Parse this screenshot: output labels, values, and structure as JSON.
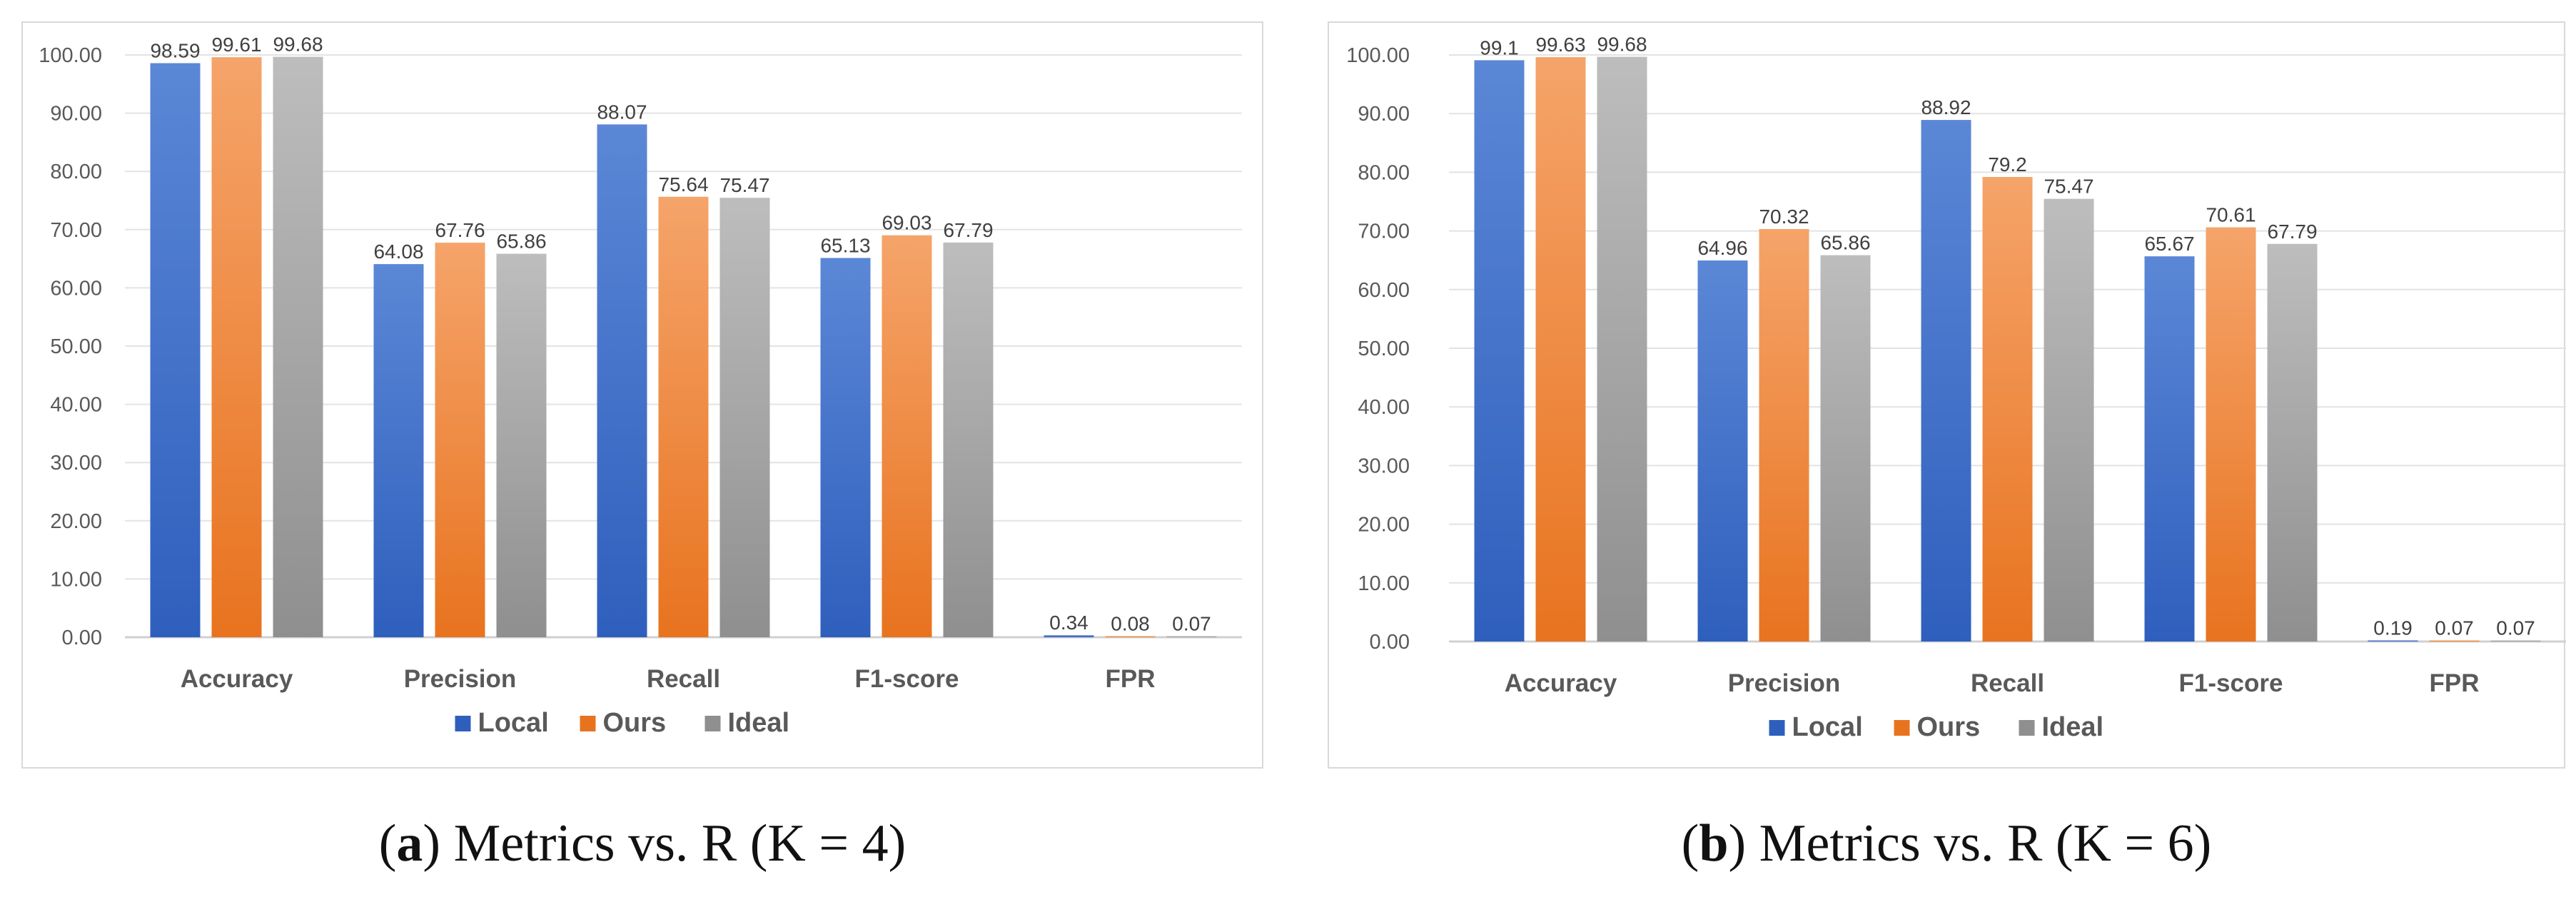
{
  "colors": {
    "Local": [
      "#5b87d6",
      "#2f5fbd"
    ],
    "Ours": [
      "#f5a46a",
      "#e8731f"
    ],
    "Ideal": [
      "#bdbdbd",
      "#8f8f8f"
    ],
    "grid": "#e3e3e3",
    "axis": "#d0d0d0",
    "tick_text": "#595959",
    "label_text": "#404040"
  },
  "figure": {
    "panels": [
      {
        "caption_letter": "a",
        "caption_text": "Metrics vs. R (K = 4)",
        "legend": [
          "Local",
          "Ours",
          "Ideal"
        ]
      },
      {
        "caption_letter": "b",
        "caption_text": "Metrics vs. R (K = 6)",
        "legend": [
          "Local",
          "Ours",
          "Ideal"
        ]
      }
    ]
  },
  "chart_data": [
    {
      "type": "bar",
      "title": "",
      "xlabel": "",
      "ylabel": "",
      "ylim": [
        0,
        100
      ],
      "yticks": [
        "0.00",
        "10.00",
        "20.00",
        "30.00",
        "40.00",
        "50.00",
        "60.00",
        "70.00",
        "80.00",
        "90.00",
        "100.00"
      ],
      "grid": true,
      "legend_position": "bottom-center",
      "categories": [
        "Accuracy",
        "Precision",
        "Recall",
        "F1-score",
        "FPR"
      ],
      "series": [
        {
          "name": "Local",
          "values": [
            98.59,
            64.08,
            88.07,
            65.13,
            0.34
          ],
          "labels": [
            "98.59",
            "64.08",
            "88.07",
            "65.13",
            "0.34"
          ]
        },
        {
          "name": "Ours",
          "values": [
            99.61,
            67.76,
            75.64,
            69.03,
            0.08
          ],
          "labels": [
            "99.61",
            "67.76",
            "75.64",
            "69.03",
            "0.08"
          ]
        },
        {
          "name": "Ideal",
          "values": [
            99.68,
            65.86,
            75.47,
            67.79,
            0.07
          ],
          "labels": [
            "99.68",
            "65.86",
            "75.47",
            "67.79",
            "0.07"
          ]
        }
      ]
    },
    {
      "type": "bar",
      "title": "",
      "xlabel": "",
      "ylabel": "",
      "ylim": [
        0,
        100
      ],
      "yticks": [
        "0.00",
        "10.00",
        "20.00",
        "30.00",
        "40.00",
        "50.00",
        "60.00",
        "70.00",
        "80.00",
        "90.00",
        "100.00"
      ],
      "grid": true,
      "legend_position": "bottom-center",
      "categories": [
        "Accuracy",
        "Precision",
        "Recall",
        "F1-score",
        "FPR"
      ],
      "series": [
        {
          "name": "Local",
          "values": [
            99.1,
            64.96,
            88.92,
            65.67,
            0.19
          ],
          "labels": [
            "99.1",
            "64.96",
            "88.92",
            "65.67",
            "0.19"
          ]
        },
        {
          "name": "Ours",
          "values": [
            99.63,
            70.32,
            79.2,
            70.61,
            0.07
          ],
          "labels": [
            "99.63",
            "70.32",
            "79.2",
            "70.61",
            "0.07"
          ]
        },
        {
          "name": "Ideal",
          "values": [
            99.68,
            65.86,
            75.47,
            67.79,
            0.07
          ],
          "labels": [
            "99.68",
            "65.86",
            "75.47",
            "67.79",
            "0.07"
          ]
        }
      ]
    }
  ]
}
